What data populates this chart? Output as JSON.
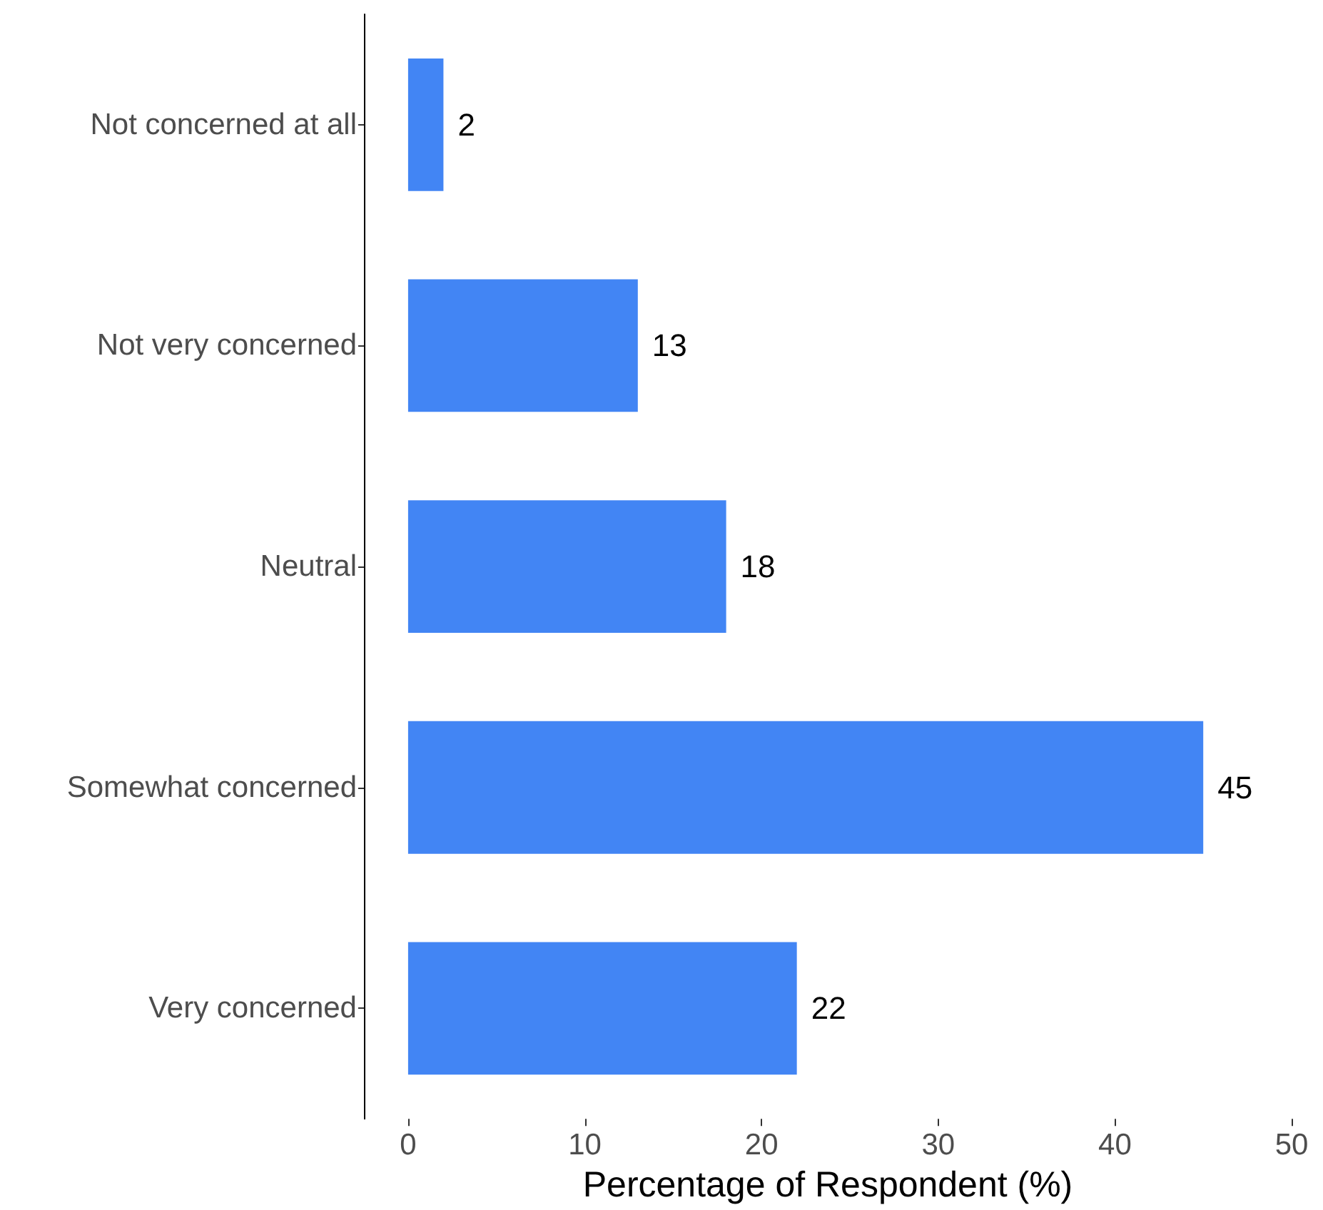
{
  "chart_data": {
    "type": "bar",
    "orientation": "horizontal",
    "categories": [
      "Not concerned at all",
      "Not very concerned",
      "Neutral",
      "Somewhat concerned",
      "Very concerned"
    ],
    "values": [
      2,
      13,
      18,
      45,
      22
    ],
    "color": "#4285f4",
    "xlabel": "Percentage of Respondent (%)",
    "xlim": [
      -2.5,
      50
    ],
    "xticks": [
      0,
      10,
      20,
      30,
      40,
      50
    ],
    "grid": false,
    "data_labels": true
  }
}
